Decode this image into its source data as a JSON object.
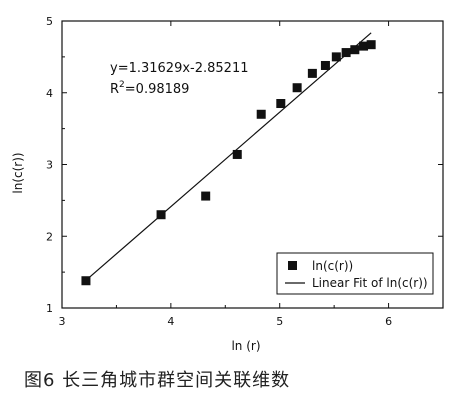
{
  "chart_data": {
    "type": "scatter",
    "xlabel": "ln (r)",
    "ylabel": "ln(c(r))",
    "xlim": [
      3,
      6.5
    ],
    "ylim": [
      1,
      5
    ],
    "xticks": [
      3,
      4,
      5,
      6
    ],
    "yticks": [
      1,
      2,
      3,
      4,
      5
    ],
    "grid": false,
    "legend_placement": "bottom-right",
    "series": [
      {
        "name": "ln(c(r))",
        "marker": "square",
        "points": [
          {
            "x": 3.22,
            "y": 1.38
          },
          {
            "x": 3.91,
            "y": 2.3
          },
          {
            "x": 4.32,
            "y": 2.56
          },
          {
            "x": 4.61,
            "y": 3.14
          },
          {
            "x": 4.83,
            "y": 3.7
          },
          {
            "x": 5.01,
            "y": 3.85
          },
          {
            "x": 5.16,
            "y": 4.07
          },
          {
            "x": 5.3,
            "y": 4.27
          },
          {
            "x": 5.42,
            "y": 4.38
          },
          {
            "x": 5.52,
            "y": 4.5
          },
          {
            "x": 5.61,
            "y": 4.56
          },
          {
            "x": 5.69,
            "y": 4.6
          },
          {
            "x": 5.77,
            "y": 4.65
          },
          {
            "x": 5.84,
            "y": 4.67
          }
        ]
      },
      {
        "name": "Linear Fit of ln(c(r))",
        "type": "line",
        "slope": 1.31629,
        "intercept": -2.85211,
        "x_range": [
          3.22,
          5.84
        ]
      }
    ],
    "annotations": {
      "equation": "y=1.31629x-2.85211",
      "r2_prefix": "R",
      "r2_sup": "2",
      "r2_value": "=0.98189"
    }
  },
  "caption": "图6 长三角城市群空间关联维数"
}
